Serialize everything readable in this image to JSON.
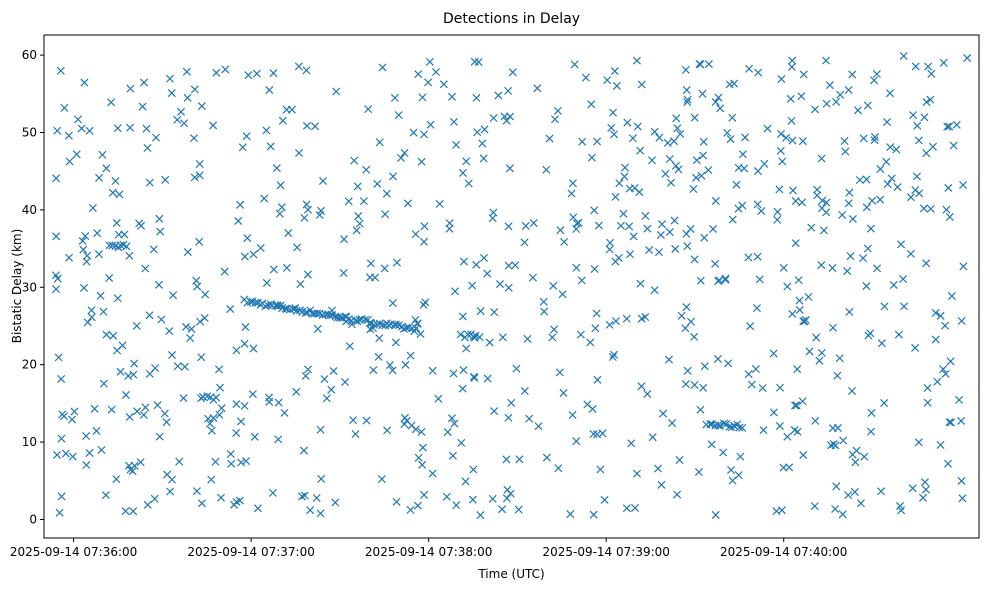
{
  "chart_data": {
    "type": "scatter",
    "title": "Detections in Delay",
    "xlabel": "Time (UTC)",
    "ylabel": "Bistatic Delay (km)",
    "x_format": "datetime",
    "xlim": [
      "2025-09-14 07:35:50",
      "2025-09-14 07:41:06"
    ],
    "ylim": [
      -2.4,
      62.6
    ],
    "x_ticks": [
      {
        "value": "2025-09-14 07:36:00",
        "label": "2025-09-14 07:36:00"
      },
      {
        "value": "2025-09-14 07:37:00",
        "label": "2025-09-14 07:37:00"
      },
      {
        "value": "2025-09-14 07:38:00",
        "label": "2025-09-14 07:38:00"
      },
      {
        "value": "2025-09-14 07:39:00",
        "label": "2025-09-14 07:39:00"
      },
      {
        "value": "2025-09-14 07:40:00",
        "label": "2025-09-14 07:40:00"
      }
    ],
    "y_ticks": [
      0,
      10,
      20,
      30,
      40,
      50,
      60
    ],
    "marker": "x",
    "color": "#1f77b4",
    "grid": false,
    "legend": "none",
    "point_count": 920,
    "noise_range": {
      "x_start": "2025-09-14 07:35:54",
      "x_end": "2025-09-14 07:41:02",
      "y_min": 0.5,
      "y_max": 60
    },
    "tracks": [
      {
        "x_start": "2025-09-14 07:36:58",
        "x_end": "2025-09-14 07:37:56",
        "y_start": 28.2,
        "y_end": 24.5
      },
      {
        "x_start": "2025-09-14 07:38:11",
        "x_end": "2025-09-14 07:38:17",
        "y_start": 23.8,
        "y_end": 23.6
      },
      {
        "x_start": "2025-09-14 07:39:34",
        "x_end": "2025-09-14 07:39:46",
        "y_start": 12.3,
        "y_end": 12.0
      },
      {
        "x_start": "2025-09-14 07:36:12",
        "x_end": "2025-09-14 07:36:18",
        "y_start": 35.4,
        "y_end": 35.4
      },
      {
        "x_start": "2025-09-14 07:36:43",
        "x_end": "2025-09-14 07:36:48",
        "y_start": 15.7,
        "y_end": 15.7
      }
    ]
  }
}
